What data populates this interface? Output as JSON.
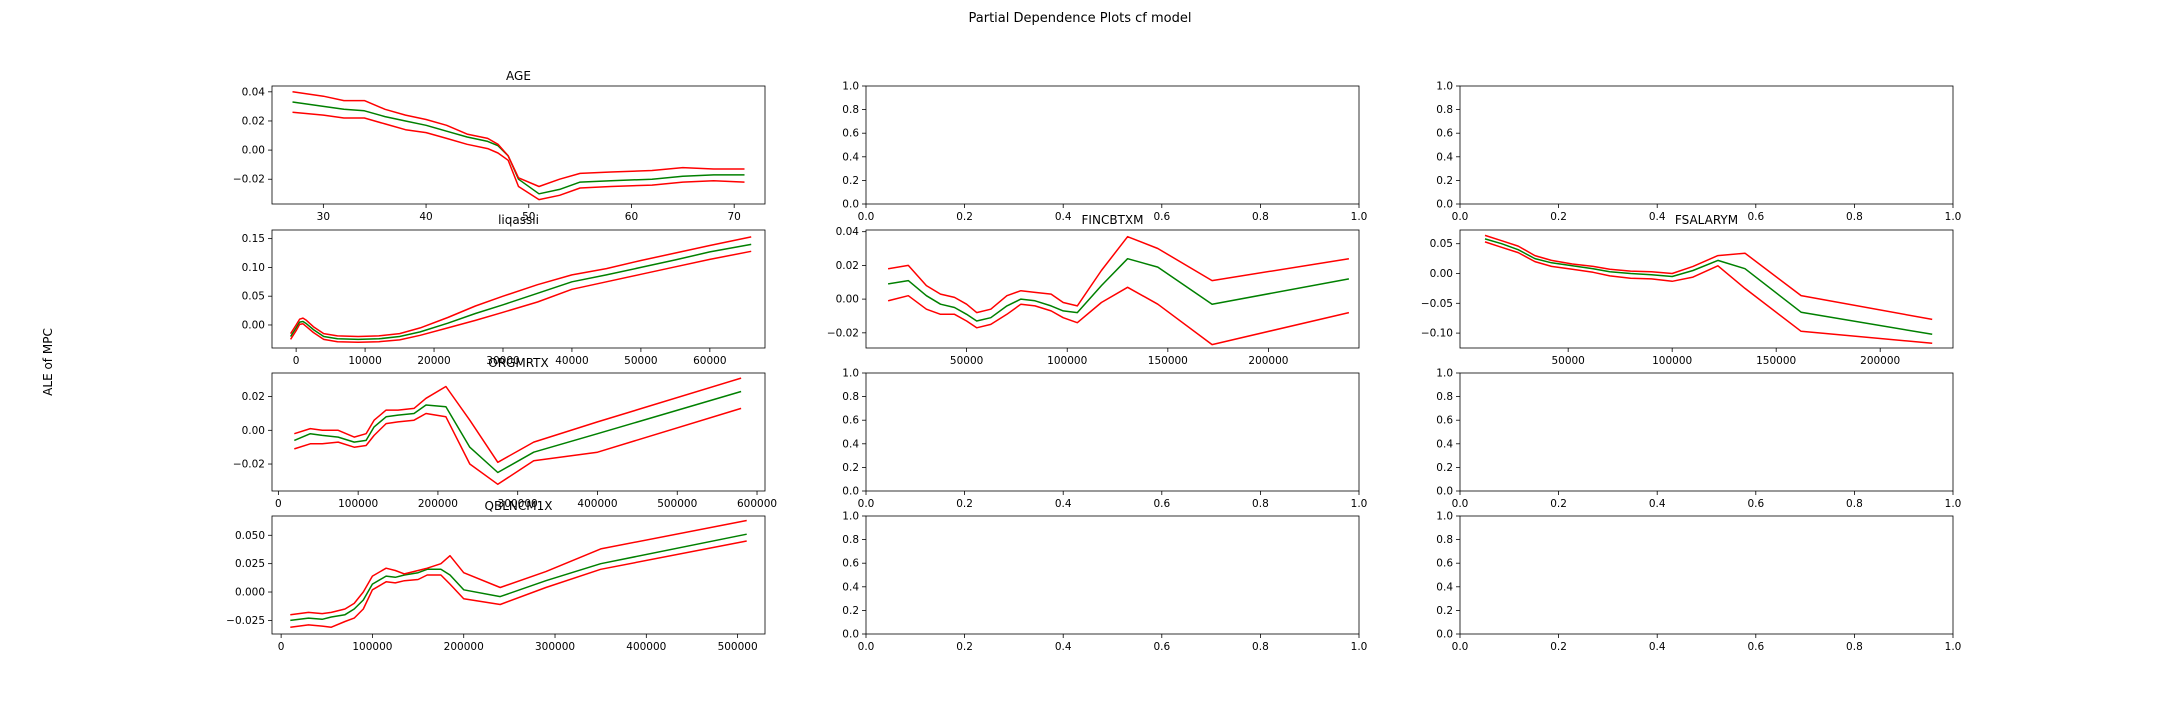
{
  "title": "Partial Dependence Plots cf model",
  "ylabel": "ALE of MPC",
  "colors": {
    "ale": "#008000",
    "ci": "#ff0000"
  },
  "chart_data": [
    {
      "type": "line",
      "title": "AGE",
      "xlim": [
        25,
        73
      ],
      "ylim": [
        -0.037,
        0.044
      ],
      "xticks": [
        "30",
        "40",
        "50",
        "60",
        "70"
      ],
      "xtick_values": [
        30,
        40,
        50,
        60,
        70
      ],
      "yticks": [
        "−0.02",
        "0.00",
        "0.02",
        "0.04"
      ],
      "ytick_values": [
        -0.02,
        0,
        0.02,
        0.04
      ],
      "x": [
        27,
        30,
        32,
        34,
        36,
        38,
        40,
        42,
        44,
        46,
        47,
        48,
        49,
        51,
        53,
        55,
        58,
        62,
        65,
        68,
        71
      ],
      "series": [
        {
          "role": "ale",
          "values": [
            0.033,
            0.03,
            0.028,
            0.027,
            0.023,
            0.02,
            0.017,
            0.013,
            0.009,
            0.006,
            0.003,
            -0.004,
            -0.02,
            -0.03,
            -0.027,
            -0.022,
            -0.021,
            -0.02,
            -0.018,
            -0.017,
            -0.017
          ]
        },
        {
          "role": "upper",
          "values": [
            0.04,
            0.037,
            0.034,
            0.034,
            0.028,
            0.024,
            0.021,
            0.017,
            0.011,
            0.008,
            0.004,
            -0.004,
            -0.019,
            -0.025,
            -0.02,
            -0.016,
            -0.015,
            -0.014,
            -0.012,
            -0.013,
            -0.013
          ]
        },
        {
          "role": "lower",
          "values": [
            0.026,
            0.024,
            0.022,
            0.022,
            0.018,
            0.014,
            0.012,
            0.008,
            0.004,
            0.001,
            -0.002,
            -0.007,
            -0.025,
            -0.034,
            -0.031,
            -0.026,
            -0.025,
            -0.024,
            -0.022,
            -0.021,
            -0.022
          ]
        }
      ]
    },
    {
      "type": "empty",
      "xlim": [
        0,
        1
      ],
      "ylim": [
        0,
        1
      ],
      "xticks": [
        "0.0",
        "0.2",
        "0.4",
        "0.6",
        "0.8",
        "1.0"
      ],
      "xtick_values": [
        0,
        0.2,
        0.4,
        0.6,
        0.8,
        1
      ],
      "yticks": [
        "0.0",
        "0.2",
        "0.4",
        "0.6",
        "0.8",
        "1.0"
      ],
      "ytick_values": [
        0,
        0.2,
        0.4,
        0.6,
        0.8,
        1
      ]
    },
    {
      "type": "empty",
      "xlim": [
        0,
        1
      ],
      "ylim": [
        0,
        1
      ],
      "xticks": [
        "0.0",
        "0.2",
        "0.4",
        "0.6",
        "0.8",
        "1.0"
      ],
      "xtick_values": [
        0,
        0.2,
        0.4,
        0.6,
        0.8,
        1
      ],
      "yticks": [
        "0.0",
        "0.2",
        "0.4",
        "0.6",
        "0.8",
        "1.0"
      ],
      "ytick_values": [
        0,
        0.2,
        0.4,
        0.6,
        0.8,
        1
      ]
    },
    {
      "type": "line",
      "title": "liqassii",
      "xlim": [
        -3500,
        68000
      ],
      "ylim": [
        -0.04,
        0.165
      ],
      "xticks": [
        "0",
        "10000",
        "20000",
        "30000",
        "40000",
        "50000",
        "60000"
      ],
      "xtick_values": [
        0,
        10000,
        20000,
        30000,
        40000,
        50000,
        60000
      ],
      "yticks": [
        "0.00",
        "0.05",
        "0.10",
        "0.15"
      ],
      "ytick_values": [
        0,
        0.05,
        0.1,
        0.15
      ],
      "x": [
        -800,
        0,
        500,
        1000,
        1500,
        2500,
        4000,
        6000,
        9000,
        12000,
        15000,
        18000,
        22000,
        26000,
        30000,
        35000,
        40000,
        45000,
        50000,
        55000,
        60000,
        66000
      ],
      "series": [
        {
          "role": "ale",
          "values": [
            -0.02,
            -0.005,
            0.005,
            0.006,
            0.002,
            -0.008,
            -0.02,
            -0.024,
            -0.025,
            -0.024,
            -0.02,
            -0.012,
            0.003,
            0.02,
            0.035,
            0.055,
            0.075,
            0.087,
            0.1,
            0.113,
            0.127,
            0.14
          ]
        },
        {
          "role": "upper",
          "values": [
            -0.015,
            0.0,
            0.01,
            0.012,
            0.008,
            -0.003,
            -0.015,
            -0.019,
            -0.02,
            -0.019,
            -0.015,
            -0.005,
            0.013,
            0.033,
            0.05,
            0.07,
            0.087,
            0.098,
            0.112,
            0.125,
            0.138,
            0.153
          ]
        },
        {
          "role": "lower",
          "values": [
            -0.025,
            -0.01,
            0.001,
            0.002,
            -0.003,
            -0.013,
            -0.025,
            -0.029,
            -0.03,
            -0.029,
            -0.026,
            -0.018,
            -0.005,
            0.008,
            0.022,
            0.04,
            0.062,
            0.075,
            0.088,
            0.101,
            0.114,
            0.128
          ]
        }
      ]
    },
    {
      "type": "line",
      "title": "FINCBTXM",
      "xlim": [
        0,
        245000
      ],
      "ylim": [
        -0.029,
        0.041
      ],
      "xticks": [
        "50000",
        "100000",
        "150000",
        "200000"
      ],
      "xtick_values": [
        50000,
        100000,
        150000,
        200000
      ],
      "yticks": [
        "−0.02",
        "0.00",
        "0.02",
        "0.04"
      ],
      "ytick_values": [
        -0.02,
        0,
        0.02,
        0.04
      ],
      "x": [
        11000,
        21000,
        30000,
        37000,
        44000,
        50000,
        55000,
        62000,
        70000,
        77000,
        84000,
        92000,
        98000,
        105000,
        117000,
        130000,
        145000,
        172000,
        240000
      ],
      "series": [
        {
          "role": "ale",
          "values": [
            0.009,
            0.011,
            0.002,
            -0.003,
            -0.005,
            -0.009,
            -0.013,
            -0.011,
            -0.004,
            0.0,
            -0.001,
            -0.004,
            -0.007,
            -0.008,
            0.008,
            0.024,
            0.019,
            -0.003,
            0.012
          ]
        },
        {
          "role": "upper",
          "values": [
            0.018,
            0.02,
            0.008,
            0.003,
            0.001,
            -0.003,
            -0.008,
            -0.006,
            0.002,
            0.005,
            0.004,
            0.003,
            -0.002,
            -0.004,
            0.017,
            0.037,
            0.03,
            0.011,
            0.024
          ]
        },
        {
          "role": "lower",
          "values": [
            -0.001,
            0.002,
            -0.006,
            -0.009,
            -0.009,
            -0.013,
            -0.017,
            -0.015,
            -0.009,
            -0.003,
            -0.004,
            -0.007,
            -0.011,
            -0.014,
            -0.002,
            0.007,
            -0.003,
            -0.027,
            -0.008
          ]
        }
      ]
    },
    {
      "type": "line",
      "title": "FSALARYM",
      "xlim": [
        -2000,
        235000
      ],
      "ylim": [
        -0.125,
        0.073
      ],
      "xticks": [
        "50000",
        "100000",
        "150000",
        "200000"
      ],
      "xtick_values": [
        50000,
        100000,
        150000,
        200000
      ],
      "yticks": [
        "−0.10",
        "−0.05",
        "0.00",
        "0.05"
      ],
      "ytick_values": [
        -0.1,
        -0.05,
        0,
        0.05
      ],
      "x": [
        10000,
        18000,
        26000,
        34000,
        42000,
        52000,
        62000,
        70000,
        80000,
        90000,
        100000,
        110000,
        122000,
        135000,
        162000,
        225000
      ],
      "series": [
        {
          "role": "ale",
          "values": [
            0.058,
            0.05,
            0.04,
            0.025,
            0.018,
            0.013,
            0.008,
            0.003,
            0.0,
            -0.002,
            -0.005,
            0.005,
            0.022,
            0.008,
            -0.065,
            -0.102
          ]
        },
        {
          "role": "upper",
          "values": [
            0.064,
            0.055,
            0.046,
            0.03,
            0.022,
            0.016,
            0.012,
            0.007,
            0.004,
            0.003,
            0.0,
            0.012,
            0.03,
            0.034,
            -0.037,
            -0.077
          ]
        },
        {
          "role": "lower",
          "values": [
            0.053,
            0.044,
            0.035,
            0.02,
            0.012,
            0.007,
            0.002,
            -0.004,
            -0.008,
            -0.009,
            -0.013,
            -0.006,
            0.013,
            -0.025,
            -0.097,
            -0.117
          ]
        }
      ]
    },
    {
      "type": "line",
      "title": "ORGMRTX",
      "xlim": [
        -8000,
        610000
      ],
      "ylim": [
        -0.036,
        0.034
      ],
      "xticks": [
        "0",
        "100000",
        "200000",
        "300000",
        "400000",
        "500000",
        "600000"
      ],
      "xtick_values": [
        0,
        100000,
        200000,
        300000,
        400000,
        500000,
        600000
      ],
      "yticks": [
        "−0.02",
        "0.00",
        "0.02"
      ],
      "ytick_values": [
        -0.02,
        0,
        0.02
      ],
      "x": [
        20000,
        40000,
        55000,
        75000,
        95000,
        110000,
        120000,
        135000,
        150000,
        170000,
        185000,
        210000,
        240000,
        275000,
        320000,
        400000,
        580000
      ],
      "series": [
        {
          "role": "ale",
          "values": [
            -0.006,
            -0.002,
            -0.003,
            -0.004,
            -0.007,
            -0.006,
            0.002,
            0.008,
            0.009,
            0.01,
            0.015,
            0.014,
            -0.01,
            -0.025,
            -0.013,
            -0.002,
            0.023
          ]
        },
        {
          "role": "upper",
          "values": [
            -0.002,
            0.001,
            0.0,
            0.0,
            -0.004,
            -0.002,
            0.006,
            0.012,
            0.012,
            0.013,
            0.019,
            0.026,
            0.006,
            -0.019,
            -0.007,
            0.005,
            0.031
          ]
        },
        {
          "role": "lower",
          "values": [
            -0.011,
            -0.008,
            -0.008,
            -0.007,
            -0.01,
            -0.009,
            -0.003,
            0.004,
            0.005,
            0.006,
            0.01,
            0.008,
            -0.02,
            -0.032,
            -0.018,
            -0.013,
            0.013
          ]
        }
      ]
    },
    {
      "type": "empty",
      "xlim": [
        0,
        1
      ],
      "ylim": [
        0,
        1
      ],
      "xticks": [
        "0.0",
        "0.2",
        "0.4",
        "0.6",
        "0.8",
        "1.0"
      ],
      "xtick_values": [
        0,
        0.2,
        0.4,
        0.6,
        0.8,
        1
      ],
      "yticks": [
        "0.0",
        "0.2",
        "0.4",
        "0.6",
        "0.8",
        "1.0"
      ],
      "ytick_values": [
        0,
        0.2,
        0.4,
        0.6,
        0.8,
        1
      ]
    },
    {
      "type": "empty",
      "xlim": [
        0,
        1
      ],
      "ylim": [
        0,
        1
      ],
      "xticks": [
        "0.0",
        "0.2",
        "0.4",
        "0.6",
        "0.8",
        "1.0"
      ],
      "xtick_values": [
        0,
        0.2,
        0.4,
        0.6,
        0.8,
        1
      ],
      "yticks": [
        "0.0",
        "0.2",
        "0.4",
        "0.6",
        "0.8",
        "1.0"
      ],
      "ytick_values": [
        0,
        0.2,
        0.4,
        0.6,
        0.8,
        1
      ]
    },
    {
      "type": "line",
      "title": "QBLNCM1X",
      "xlim": [
        -10000,
        530000
      ],
      "ylim": [
        -0.037,
        0.067
      ],
      "xticks": [
        "0",
        "100000",
        "200000",
        "300000",
        "400000",
        "500000"
      ],
      "xtick_values": [
        0,
        100000,
        200000,
        300000,
        400000,
        500000
      ],
      "yticks": [
        "−0.025",
        "0.000",
        "0.025",
        "0.050"
      ],
      "ytick_values": [
        -0.025,
        0,
        0.025,
        0.05
      ],
      "x": [
        10000,
        30000,
        45000,
        55000,
        70000,
        80000,
        90000,
        100000,
        115000,
        125000,
        135000,
        150000,
        160000,
        175000,
        185000,
        200000,
        240000,
        290000,
        350000,
        510000
      ],
      "series": [
        {
          "role": "ale",
          "values": [
            -0.025,
            -0.023,
            -0.024,
            -0.022,
            -0.02,
            -0.015,
            -0.007,
            0.007,
            0.014,
            0.013,
            0.015,
            0.017,
            0.02,
            0.02,
            0.015,
            0.002,
            -0.004,
            0.01,
            0.025,
            0.051
          ]
        },
        {
          "role": "upper",
          "values": [
            -0.02,
            -0.018,
            -0.019,
            -0.018,
            -0.015,
            -0.01,
            0.0,
            0.014,
            0.021,
            0.019,
            0.016,
            0.019,
            0.021,
            0.025,
            0.032,
            0.017,
            0.004,
            0.018,
            0.038,
            0.063
          ]
        },
        {
          "role": "lower",
          "values": [
            -0.031,
            -0.029,
            -0.03,
            -0.031,
            -0.026,
            -0.023,
            -0.015,
            0.002,
            0.009,
            0.008,
            0.01,
            0.011,
            0.015,
            0.015,
            0.007,
            -0.006,
            -0.011,
            0.004,
            0.02,
            0.045
          ]
        }
      ]
    },
    {
      "type": "empty",
      "xlim": [
        0,
        1
      ],
      "ylim": [
        0,
        1
      ],
      "xticks": [
        "0.0",
        "0.2",
        "0.4",
        "0.6",
        "0.8",
        "1.0"
      ],
      "xtick_values": [
        0,
        0.2,
        0.4,
        0.6,
        0.8,
        1
      ],
      "yticks": [
        "0.0",
        "0.2",
        "0.4",
        "0.6",
        "0.8",
        "1.0"
      ],
      "ytick_values": [
        0,
        0.2,
        0.4,
        0.6,
        0.8,
        1
      ]
    },
    {
      "type": "empty",
      "xlim": [
        0,
        1
      ],
      "ylim": [
        0,
        1
      ],
      "xticks": [
        "0.0",
        "0.2",
        "0.4",
        "0.6",
        "0.8",
        "1.0"
      ],
      "xtick_values": [
        0,
        0.2,
        0.4,
        0.6,
        0.8,
        1
      ],
      "yticks": [
        "0.0",
        "0.2",
        "0.4",
        "0.6",
        "0.8",
        "1.0"
      ],
      "ytick_values": [
        0,
        0.2,
        0.4,
        0.6,
        0.8,
        1
      ]
    }
  ]
}
